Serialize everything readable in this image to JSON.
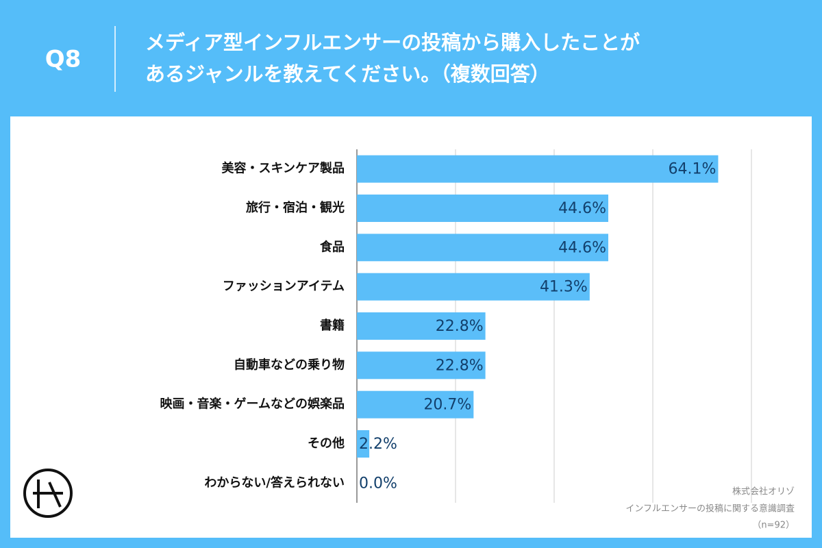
{
  "chart_data": {
    "type": "hbar",
    "question": "Q8",
    "title": [
      "メディア型インフルエンサーの投稿から購入したことが",
      "あるジャンルを教えてください。（複数回答）"
    ],
    "categories": [
      "美容・スキンケア製品",
      "旅行・宿泊・観光",
      "食品",
      "ファッションアイテム",
      "書籍",
      "自動車などの乗り物",
      "映画・音楽・ゲームなどの娯楽品",
      "その他",
      "わからない/答えられない"
    ],
    "values": [
      64.1,
      44.6,
      44.6,
      41.3,
      22.8,
      22.8,
      20.7,
      2.2,
      0.0
    ],
    "value_labels": [
      "64.1%",
      "44.6%",
      "44.6%",
      "41.3%",
      "22.8%",
      "22.8%",
      "20.7%",
      "2.2%",
      "0.0%"
    ],
    "color": "#5bbef9",
    "xlim": [
      0,
      70
    ],
    "xticks": [
      0,
      17.5,
      35,
      52.5,
      70
    ],
    "grid": true,
    "notes": [
      "株式会社オリゾ",
      "インフルエンサーの投稿に関する意識調査",
      "（n=92）"
    ]
  }
}
